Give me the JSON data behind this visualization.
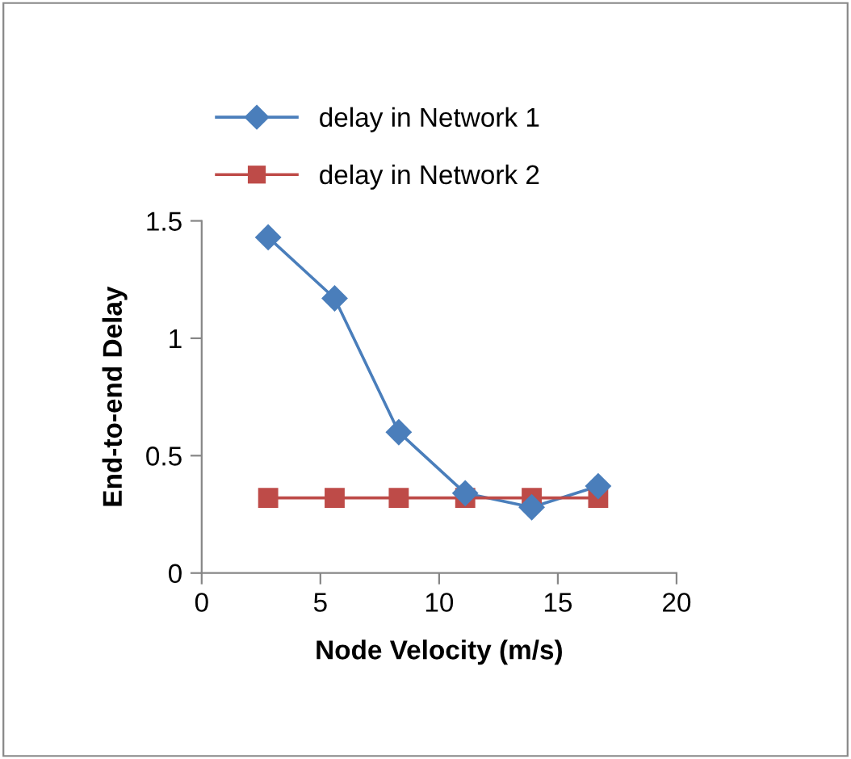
{
  "chart_data": {
    "type": "line",
    "xlabel": "Node Velocity (m/s)",
    "ylabel": "End-to-end Delay",
    "x": [
      2.8,
      5.6,
      8.3,
      11.1,
      13.9,
      16.7
    ],
    "series": [
      {
        "name": "delay in Network 1",
        "color": "#4a7ebb",
        "marker": "diamond",
        "values": [
          1.43,
          1.17,
          0.6,
          0.34,
          0.28,
          0.37
        ]
      },
      {
        "name": "delay in Network 2",
        "color": "#be4b48",
        "marker": "square",
        "values": [
          0.32,
          0.32,
          0.32,
          0.32,
          0.32,
          0.32
        ]
      }
    ],
    "xlim": [
      0,
      20
    ],
    "xticks": [
      0,
      5,
      10,
      15,
      20
    ],
    "ylim": [
      0,
      1.5
    ],
    "yticks": [
      0,
      0.5,
      1,
      1.5
    ],
    "grid": false,
    "legend": "top",
    "line_style": "solid"
  }
}
